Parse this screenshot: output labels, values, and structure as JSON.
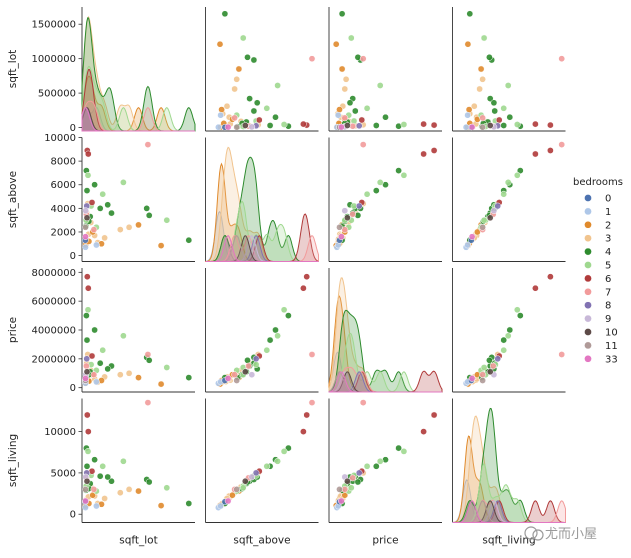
{
  "chart_data": {
    "type": "scatter",
    "title": "",
    "variables": [
      "sqft_lot",
      "sqft_above",
      "price",
      "sqft_living"
    ],
    "diagonal_kind": "kde",
    "hue": "bedrooms",
    "legend": {
      "title": "bedrooms",
      "placement": "right",
      "entries": [
        {
          "label": "0",
          "color": "#4c72b0"
        },
        {
          "label": "1",
          "color": "#aec7e8"
        },
        {
          "label": "2",
          "color": "#e08a2c"
        },
        {
          "label": "3",
          "color": "#f1c48e"
        },
        {
          "label": "4",
          "color": "#2e8b2e"
        },
        {
          "label": "5",
          "color": "#9fd88f"
        },
        {
          "label": "6",
          "color": "#b03a3a"
        },
        {
          "label": "7",
          "color": "#f29b9b"
        },
        {
          "label": "8",
          "color": "#8172b2"
        },
        {
          "label": "9",
          "color": "#c8b8d8"
        },
        {
          "label": "10",
          "color": "#5d4a47"
        },
        {
          "label": "11",
          "color": "#b09a98"
        },
        {
          "label": "33",
          "color": "#e377c2"
        }
      ]
    },
    "axes": {
      "sqft_lot": {
        "label": "sqft_lot",
        "range": [
          -50000,
          1750000
        ],
        "ticks": [
          0,
          500000,
          1000000,
          1500000
        ],
        "tick_labels": [
          "0",
          "500000",
          "1000000",
          "1500000"
        ]
      },
      "sqft_above": {
        "label": "sqft_above",
        "range": [
          -500,
          10000
        ],
        "ticks": [
          0,
          2000,
          4000,
          6000,
          8000,
          10000
        ],
        "tick_labels": [
          "0",
          "2000",
          "4000",
          "6000",
          "8000",
          "10000"
        ]
      },
      "price": {
        "label": "price",
        "range": [
          -300000,
          8300000
        ],
        "ticks": [
          0,
          2000000,
          4000000,
          6000000,
          8000000
        ],
        "tick_labels": [
          "0",
          "2000000",
          "4000000",
          "6000000",
          "8000000"
        ]
      },
      "sqft_living": {
        "label": "sqft_living",
        "range": [
          -1000,
          14000
        ],
        "ticks": [
          0,
          5000,
          10000
        ],
        "tick_labels": [
          "0",
          "5000",
          "10000"
        ]
      }
    },
    "points": [
      {
        "bedrooms": "3",
        "sqft_lot": 9000,
        "sqft_above": 1400,
        "price": 420000,
        "sqft_living": 1700
      },
      {
        "bedrooms": "3",
        "sqft_lot": 52000,
        "sqft_above": 1800,
        "price": 520000,
        "sqft_living": 2100
      },
      {
        "bedrooms": "3",
        "sqft_lot": 150000,
        "sqft_above": 1700,
        "price": 600000,
        "sqft_living": 2200
      },
      {
        "bedrooms": "3",
        "sqft_lot": 310000,
        "sqft_above": 1500,
        "price": 750000,
        "sqft_living": 1900
      },
      {
        "bedrooms": "3",
        "sqft_lot": 560000,
        "sqft_above": 2200,
        "price": 900000,
        "sqft_living": 2600
      },
      {
        "bedrooms": "3",
        "sqft_lot": 90000,
        "sqft_above": 2800,
        "price": 1200000,
        "sqft_living": 3300
      },
      {
        "bedrooms": "3",
        "sqft_lot": 25000,
        "sqft_above": 3600,
        "price": 1700000,
        "sqft_living": 4300
      },
      {
        "bedrooms": "3",
        "sqft_lot": 200000,
        "sqft_above": 1100,
        "price": 380000,
        "sqft_living": 1300
      },
      {
        "bedrooms": "3",
        "sqft_lot": 700000,
        "sqft_above": 2400,
        "price": 1000000,
        "sqft_living": 3000
      },
      {
        "bedrooms": "3",
        "sqft_lot": 40000,
        "sqft_above": 4400,
        "price": 2300000,
        "sqft_living": 5000
      },
      {
        "bedrooms": "2",
        "sqft_lot": 7000,
        "sqft_above": 900,
        "price": 320000,
        "sqft_living": 1000
      },
      {
        "bedrooms": "2",
        "sqft_lot": 60000,
        "sqft_above": 1200,
        "price": 450000,
        "sqft_living": 1300
      },
      {
        "bedrooms": "2",
        "sqft_lot": 260000,
        "sqft_above": 1000,
        "price": 500000,
        "sqft_living": 1200
      },
      {
        "bedrooms": "2",
        "sqft_lot": 1210000,
        "sqft_above": 850,
        "price": 250000,
        "sqft_living": 1050
      },
      {
        "bedrooms": "2",
        "sqft_lot": 850000,
        "sqft_above": 2600,
        "price": 700000,
        "sqft_living": 2800
      },
      {
        "bedrooms": "2",
        "sqft_lot": 120000,
        "sqft_above": 2000,
        "price": 900000,
        "sqft_living": 2300
      },
      {
        "bedrooms": "4",
        "sqft_lot": 12000,
        "sqft_above": 2500,
        "price": 700000,
        "sqft_living": 2900
      },
      {
        "bedrooms": "4",
        "sqft_lot": 80000,
        "sqft_above": 3300,
        "price": 1100000,
        "sqft_living": 3700
      },
      {
        "bedrooms": "4",
        "sqft_lot": 240000,
        "sqft_above": 4000,
        "price": 1700000,
        "sqft_living": 4600
      },
      {
        "bedrooms": "4",
        "sqft_lot": 420000,
        "sqft_above": 3600,
        "price": 1500000,
        "sqft_living": 4000
      },
      {
        "bedrooms": "4",
        "sqft_lot": 980000,
        "sqft_above": 4000,
        "price": 2100000,
        "sqft_living": 4200
      },
      {
        "bedrooms": "4",
        "sqft_lot": 1020000,
        "sqft_above": 3400,
        "price": 1900000,
        "sqft_living": 3900
      },
      {
        "bedrooms": "4",
        "sqft_lot": 1651000,
        "sqft_above": 1300,
        "price": 700000,
        "sqft_living": 1300
      },
      {
        "bedrooms": "4",
        "sqft_lot": 30000,
        "sqft_above": 5500,
        "price": 3300000,
        "sqft_living": 5800
      },
      {
        "bedrooms": "4",
        "sqft_lot": 150000,
        "sqft_above": 6000,
        "price": 4000000,
        "sqft_living": 6600
      },
      {
        "bedrooms": "4",
        "sqft_lot": 20000,
        "sqft_above": 7200,
        "price": 5000000,
        "sqft_living": 8000
      },
      {
        "bedrooms": "4",
        "sqft_lot": 60000,
        "sqft_above": 2900,
        "price": 900000,
        "sqft_living": 3100
      },
      {
        "bedrooms": "4",
        "sqft_lot": 360000,
        "sqft_above": 4300,
        "price": 1300000,
        "sqft_living": 4500
      },
      {
        "bedrooms": "5",
        "sqft_lot": 15000,
        "sqft_above": 3000,
        "price": 900000,
        "sqft_living": 3400
      },
      {
        "bedrooms": "5",
        "sqft_lot": 95000,
        "sqft_above": 4200,
        "price": 1600000,
        "sqft_living": 4700
      },
      {
        "bedrooms": "5",
        "sqft_lot": 280000,
        "sqft_above": 5200,
        "price": 2600000,
        "sqft_living": 5800
      },
      {
        "bedrooms": "5",
        "sqft_lot": 610000,
        "sqft_above": 6200,
        "price": 3600000,
        "sqft_living": 6400
      },
      {
        "bedrooms": "5",
        "sqft_lot": 45000,
        "sqft_above": 6800,
        "price": 5400000,
        "sqft_living": 7600
      },
      {
        "bedrooms": "5",
        "sqft_lot": 180000,
        "sqft_above": 2400,
        "price": 1200000,
        "sqft_living": 2800
      },
      {
        "bedrooms": "5",
        "sqft_lot": 1300000,
        "sqft_above": 3000,
        "price": 1400000,
        "sqft_living": 3200
      },
      {
        "bedrooms": "6",
        "sqft_lot": 35000,
        "sqft_above": 8900,
        "price": 7700000,
        "sqft_living": 12000
      },
      {
        "bedrooms": "6",
        "sqft_lot": 50000,
        "sqft_above": 8600,
        "price": 6900000,
        "sqft_living": 10000
      },
      {
        "bedrooms": "6",
        "sqft_lot": 110000,
        "sqft_above": 4500,
        "price": 2200000,
        "sqft_living": 5200
      },
      {
        "bedrooms": "7",
        "sqft_lot": 20000,
        "sqft_above": 3500,
        "price": 1500000,
        "sqft_living": 4400
      },
      {
        "bedrooms": "7",
        "sqft_lot": 140000,
        "sqft_above": 2200,
        "price": 900000,
        "sqft_living": 3000
      },
      {
        "bedrooms": "1",
        "sqft_lot": 5000,
        "sqft_above": 700,
        "price": 300000,
        "sqft_living": 800
      },
      {
        "bedrooms": "1",
        "sqft_lot": 180000,
        "sqft_above": 900,
        "price": 400000,
        "sqft_living": 1000
      },
      {
        "bedrooms": "0",
        "sqft_lot": 3000,
        "sqft_above": 1300,
        "price": 500000,
        "sqft_living": 1500
      },
      {
        "bedrooms": "8",
        "sqft_lot": 25000,
        "sqft_above": 4200,
        "price": 2000000,
        "sqft_living": 5000
      },
      {
        "bedrooms": "9",
        "sqft_lot": 9000,
        "sqft_above": 3800,
        "price": 900000,
        "sqft_living": 4500
      },
      {
        "bedrooms": "10",
        "sqft_lot": 30000,
        "sqft_above": 3200,
        "price": 1100000,
        "sqft_living": 4000
      },
      {
        "bedrooms": "11",
        "sqft_lot": 5000,
        "sqft_above": 2400,
        "price": 500000,
        "sqft_living": 3000
      },
      {
        "bedrooms": "33",
        "sqft_lot": 6000,
        "sqft_above": 1600,
        "price": 640000,
        "sqft_living": 1600
      },
      {
        "bedrooms": "7",
        "sqft_lot": 1000000,
        "sqft_above": 9400,
        "price": 2300000,
        "sqft_living": 13500
      }
    ]
  },
  "watermark": {
    "text": "尤而小屋"
  }
}
